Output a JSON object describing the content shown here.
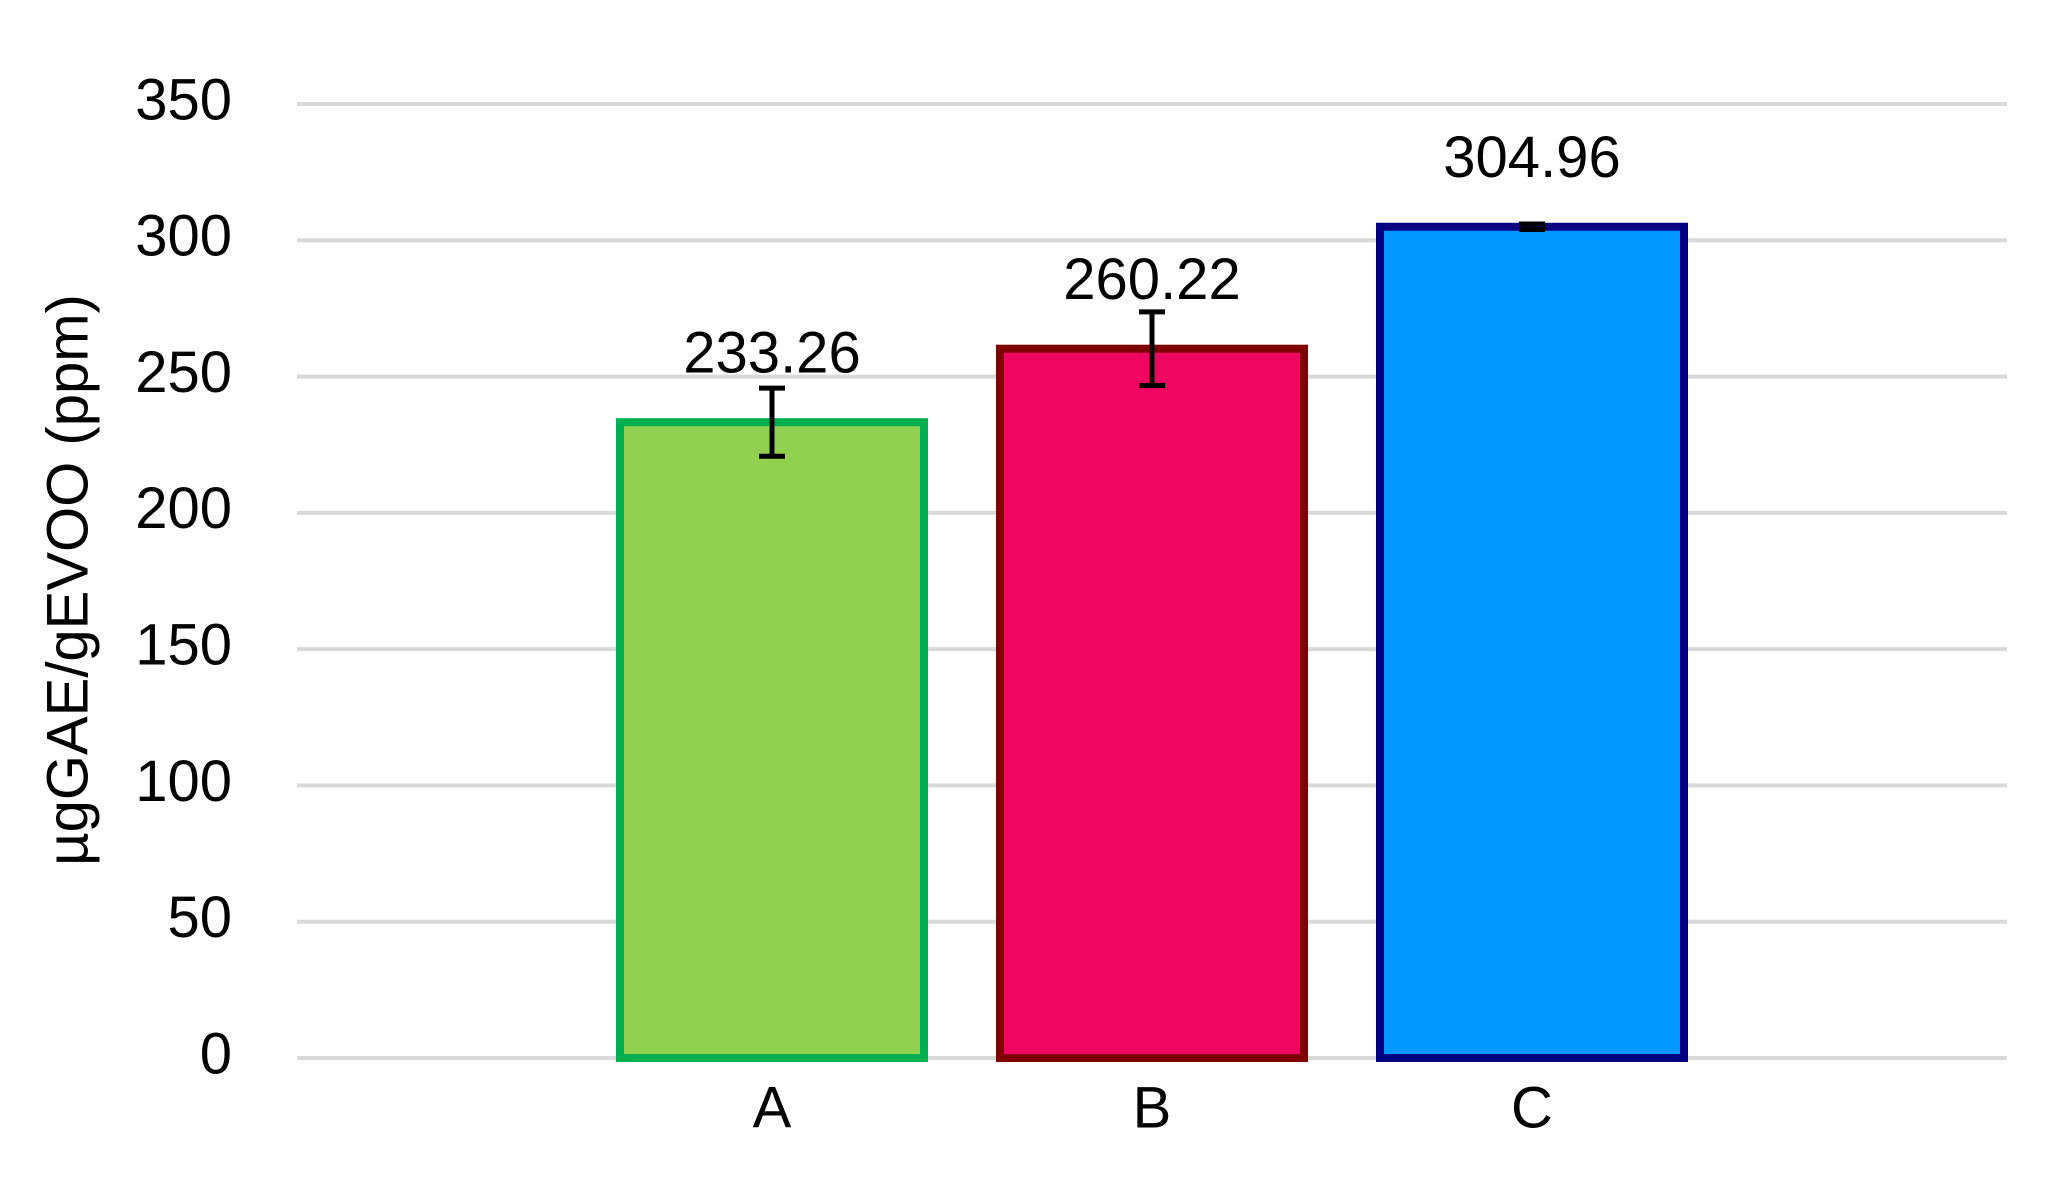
{
  "chart_data": {
    "type": "bar",
    "y_label": "µgGAE/gEVOO (ppm)",
    "categories": [
      "A",
      "B",
      "C"
    ],
    "values": [
      233.26,
      260.22,
      304.96
    ],
    "errors": [
      12.5,
      13.5,
      1
    ],
    "colors": [
      "#92d050",
      "#ee0660",
      "#0096ff"
    ],
    "edge_colors": [
      "#00b050",
      "#7f0000",
      "#000080"
    ],
    "ylim": [
      0,
      350
    ],
    "yticks": [
      0,
      50,
      100,
      150,
      200,
      250,
      300,
      350
    ],
    "grid": true
  }
}
